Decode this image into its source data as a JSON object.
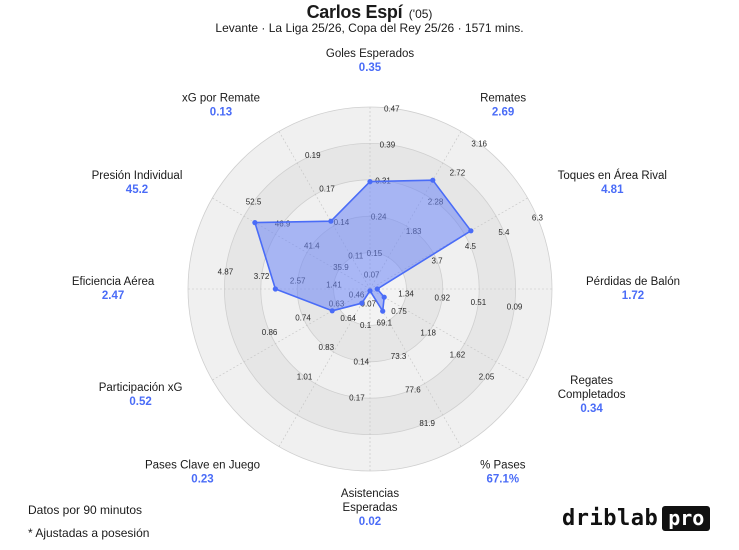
{
  "header": {
    "player_name": "Carlos Espí",
    "player_year": "('05)",
    "subtitle": "Levante · La Liga 25/26, Copa del Rey 25/26 · 1571 mins."
  },
  "chart_data": {
    "type": "radar",
    "title": "Carlos Espí ('05)",
    "subtitle": "Levante · La Liga 25/26, Copa del Rey 25/26 · 1571 mins.",
    "ring_fractions": [
      0.2,
      0.4,
      0.6,
      0.8,
      1.0
    ],
    "series_color": "#4a6cf7",
    "fill_color": "#6b85f5",
    "axes": [
      {
        "label": [
          "Goles Esperados"
        ],
        "value": 0.35,
        "value_label": "0.35",
        "ticks": [
          "0.07",
          "0.15",
          "0.24",
          "0.31",
          "0.39",
          "0.47"
        ]
      },
      {
        "label": [
          "Remates"
        ],
        "value": 2.69,
        "value_label": "2.69",
        "ticks": [
          "",
          "",
          "1.83",
          "2.28",
          "2.72",
          "3.16"
        ]
      },
      {
        "label": [
          "Toques en Área Rival"
        ],
        "value": 4.81,
        "value_label": "4.81",
        "ticks": [
          "",
          "",
          "3.7",
          "4.5",
          "5.4",
          "6.3"
        ]
      },
      {
        "label": [
          "Pérdidas de Balón"
        ],
        "value": 1.72,
        "value_label": "1.72",
        "ticks": [
          "",
          "1.34",
          "0.92",
          "0.51",
          "0.09",
          ""
        ]
      },
      {
        "label": [
          "Regates",
          "Completados"
        ],
        "value": 0.34,
        "value_label": "0.34",
        "ticks": [
          "",
          "0.75",
          "1.18",
          "1.62",
          "2.05",
          ""
        ]
      },
      {
        "label": [
          "% Pases"
        ],
        "value": 67.1,
        "value_label": "67.1%",
        "ticks": [
          "",
          "69.1",
          "73.3",
          "77.6",
          "81.9",
          ""
        ]
      },
      {
        "label": [
          "Asistencias",
          "Esperadas"
        ],
        "value": 0.02,
        "value_label": "0.02",
        "ticks": [
          "0.07",
          "0.1",
          "0.14",
          "0.17",
          "",
          ""
        ]
      },
      {
        "label": [
          "Pases Clave en Juego"
        ],
        "value": 0.23,
        "value_label": "0.23",
        "ticks": [
          "",
          "0.64",
          "0.83",
          "1.01",
          "",
          ""
        ]
      },
      {
        "label": [
          "Participación xG"
        ],
        "value": 0.52,
        "value_label": "0.52",
        "ticks": [
          "0.46",
          "0.63",
          "0.74",
          "0.86",
          "",
          ""
        ]
      },
      {
        "label": [
          "Eficiencia Aérea"
        ],
        "value": 2.47,
        "value_label": "2.47",
        "ticks": [
          "",
          "1.41",
          "2.57",
          "3.72",
          "4.87",
          ""
        ]
      },
      {
        "label": [
          "Presión Individual"
        ],
        "value": 45.2,
        "value_label": "45.2",
        "ticks": [
          "",
          "35.9",
          "41.4",
          "46.9",
          "52.5",
          ""
        ]
      },
      {
        "label": [
          "xG por Remate"
        ],
        "value": 0.13,
        "value_label": "0.13",
        "ticks": [
          "",
          "0.11",
          "0.14",
          "0.17",
          "0.19",
          ""
        ]
      }
    ],
    "point_fractions": [
      0.59,
      0.69,
      0.64,
      0.04,
      0.09,
      0.14,
      0.01,
      0.09,
      0.24,
      0.52,
      0.73,
      0.43
    ]
  },
  "footer": {
    "note_1": "Datos por 90 minutos",
    "note_2": "* Ajustadas a posesión",
    "brand": "driblab",
    "brand_badge": "pro"
  }
}
